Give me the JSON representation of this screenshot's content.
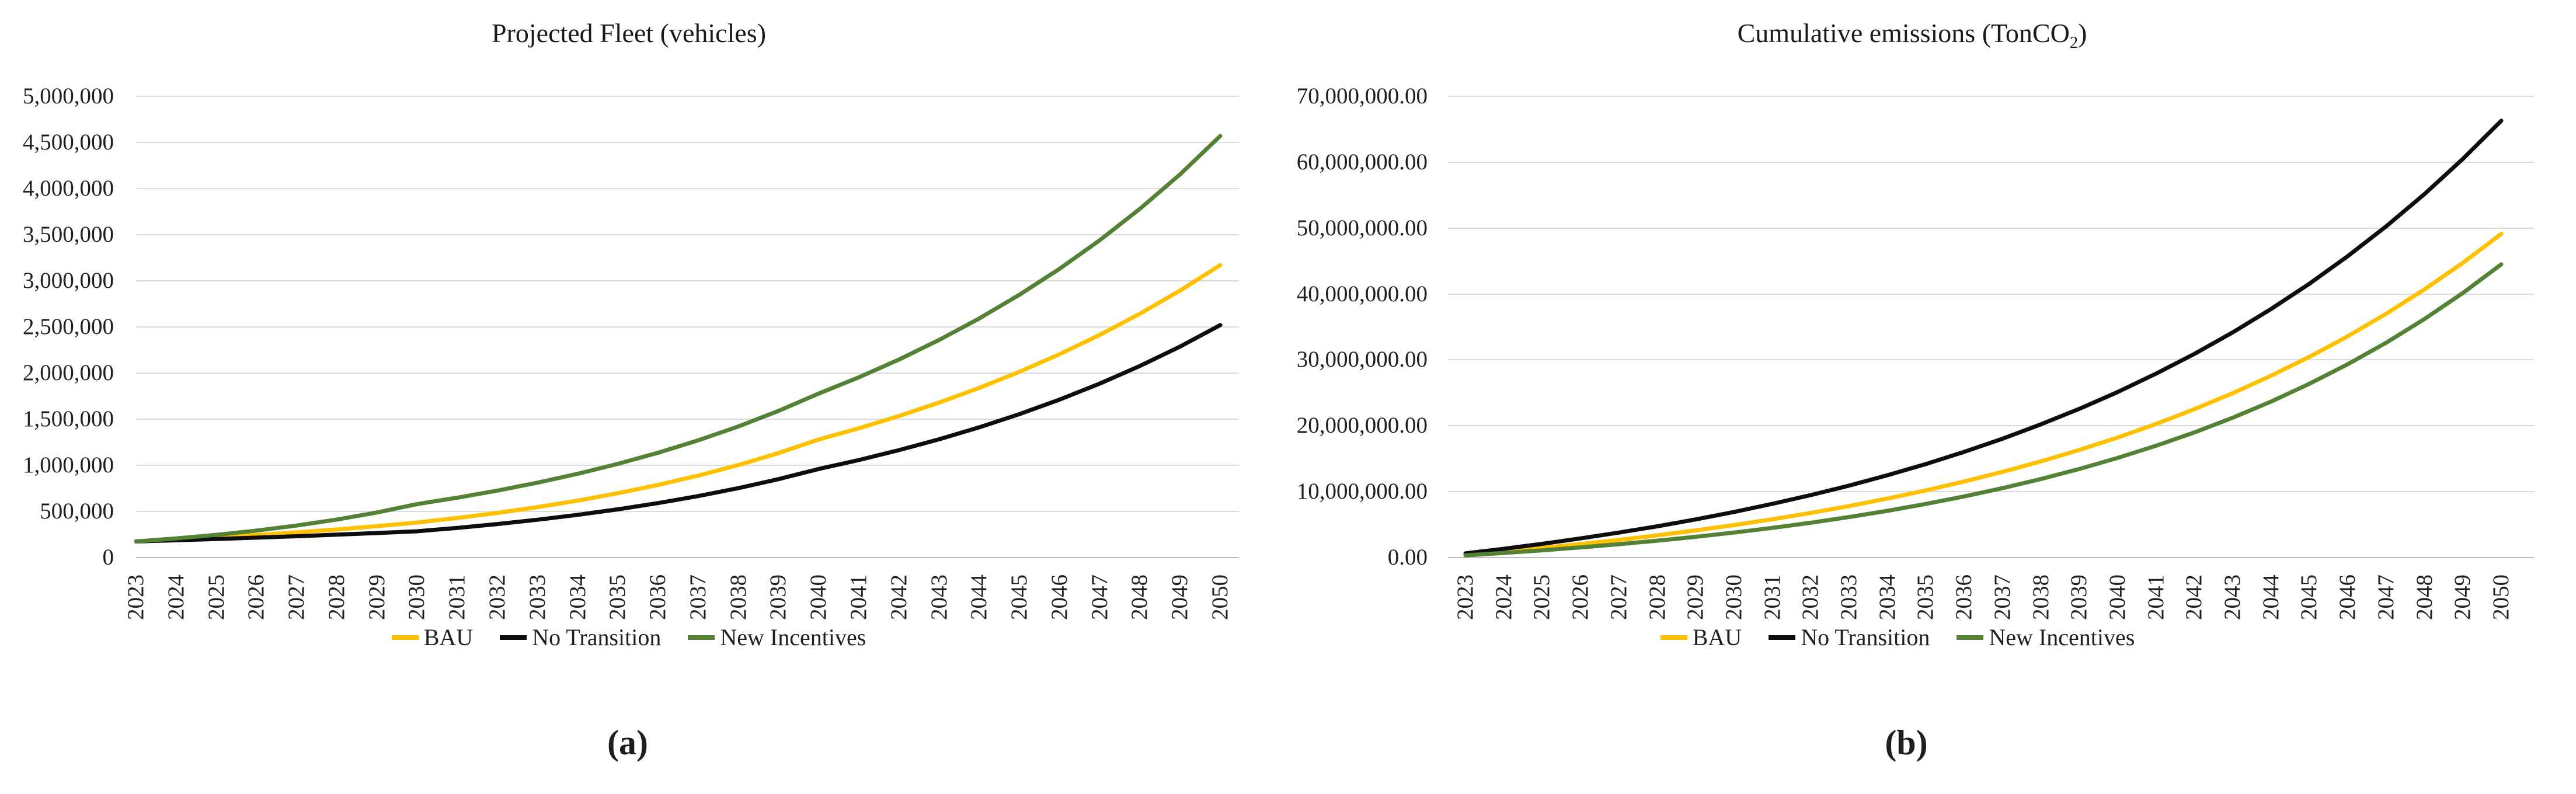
{
  "colors": {
    "bau": "#FFC000",
    "no_transition": "#0D0D0D",
    "new_incentives": "#548235",
    "gridline": "#DCDCDC",
    "axis_line": "#BFBFBF",
    "text": "#1F1F1F",
    "background": "#FFFFFF"
  },
  "figure": {
    "caption_a": "(a)",
    "caption_b": "(b)"
  },
  "chart_data": [
    {
      "id": "projected-fleet",
      "type": "line",
      "title": {
        "prefix": "Projected Fleet (vehicles)",
        "sub": "",
        "suffix": ""
      },
      "caption": "(a)",
      "grid": true,
      "legend_position": "bottom",
      "ylim": [
        0,
        5000000
      ],
      "ylabel": "",
      "xlabel": "",
      "y_tick_labels": [
        "5,000,000",
        "4,500,000",
        "4,000,000",
        "3,500,000",
        "3,000,000",
        "2,500,000",
        "2,000,000",
        "1,500,000",
        "1,000,000",
        "500,000",
        "0"
      ],
      "x_tick_labels": [
        "2023",
        "2024",
        "2025",
        "2026",
        "2027",
        "2028",
        "2029",
        "2030",
        "2031",
        "2032",
        "2033",
        "2034",
        "2035",
        "2036",
        "2037",
        "2038",
        "2039",
        "2040",
        "2041",
        "2042",
        "2043",
        "2044",
        "2045",
        "2046",
        "2047",
        "2048",
        "2049",
        "2050"
      ],
      "series": [
        {
          "name": "BAU",
          "color_key": "bau",
          "values": [
            175000,
            195500,
            218400,
            244000,
            272600,
            304600,
            340300,
            380000,
            429100,
            484400,
            546900,
            617500,
            697200,
            787100,
            888700,
            1003300,
            1132800,
            1280000,
            1401500,
            1534500,
            1680100,
            1839500,
            2014100,
            2205200,
            2414500,
            2643600,
            2894400,
            3170000
          ]
        },
        {
          "name": "No Transition",
          "color_key": "no_transition",
          "values": [
            175000,
            187600,
            201200,
            215700,
            231300,
            248000,
            265900,
            285000,
            321800,
            363300,
            410200,
            463200,
            523000,
            590500,
            666700,
            752800,
            850000,
            960000,
            1057200,
            1164300,
            1282200,
            1412100,
            1555100,
            1712600,
            1886100,
            2077100,
            2287500,
            2520000
          ]
        },
        {
          "name": "New Incentives",
          "color_key": "new_incentives",
          "values": [
            175000,
            207700,
            246500,
            292500,
            347100,
            411900,
            488800,
            580000,
            648800,
            725700,
            811800,
            908000,
            1015700,
            1136100,
            1270800,
            1421500,
            1590000,
            1778000,
            1953800,
            2147000,
            2359400,
            2592700,
            2849100,
            3130900,
            3440500,
            3780800,
            4154700,
            4570000
          ]
        }
      ]
    },
    {
      "id": "cumulative-emissions",
      "type": "line",
      "title": {
        "prefix": "Cumulative emissions (TonCO",
        "sub": "2",
        "suffix": ")"
      },
      "caption": "(b)",
      "grid": true,
      "legend_position": "bottom",
      "ylim": [
        0,
        70000000
      ],
      "ylabel": "",
      "xlabel": "",
      "y_tick_labels": [
        "70,000,000.00",
        "60,000,000.00",
        "50,000,000.00",
        "40,000,000.00",
        "30,000,000.00",
        "20,000,000.00",
        "10,000,000.00",
        "0.00"
      ],
      "x_tick_labels": [
        "2023",
        "2024",
        "2025",
        "2026",
        "2027",
        "2028",
        "2029",
        "2030",
        "2031",
        "2032",
        "2033",
        "2034",
        "2035",
        "2036",
        "2037",
        "2038",
        "2039",
        "2040",
        "2041",
        "2042",
        "2043",
        "2044",
        "2045",
        "2046",
        "2047",
        "2048",
        "2049",
        "2050"
      ],
      "series": [
        {
          "name": "BAU",
          "color_key": "bau",
          "values": [
            450000,
            941000,
            1473000,
            2051000,
            2680000,
            3370000,
            4117000,
            4930000,
            5810000,
            6771000,
            7819000,
            8955000,
            10193000,
            11543000,
            13005000,
            14601000,
            16334000,
            18221000,
            20277000,
            22516000,
            24951000,
            27600000,
            30460000,
            33590000,
            37000000,
            40710000,
            44740000,
            49120000
          ]
        },
        {
          "name": "No Transition",
          "color_key": "no_transition",
          "values": [
            639000,
            1331000,
            2082000,
            2902000,
            3789000,
            4744000,
            5789000,
            6924000,
            8150000,
            9480000,
            10920000,
            12490000,
            14190000,
            16040000,
            18040000,
            20220000,
            22570000,
            25120000,
            27910000,
            30910000,
            34180000,
            37730000,
            41570000,
            45750000,
            50270000,
            55180000,
            60510000,
            66290000
          ]
        },
        {
          "name": "New Incentives",
          "color_key": "new_incentives",
          "values": [
            332000,
            696000,
            1098000,
            1539000,
            2025000,
            2559000,
            3146000,
            3792000,
            4503000,
            5285000,
            6145000,
            7091000,
            8132000,
            9277000,
            10536000,
            11921000,
            13445000,
            15121000,
            16964000,
            18992000,
            21223000,
            23677000,
            26376000,
            29345000,
            32611000,
            36204000,
            40156000,
            44503000
          ]
        }
      ]
    }
  ]
}
